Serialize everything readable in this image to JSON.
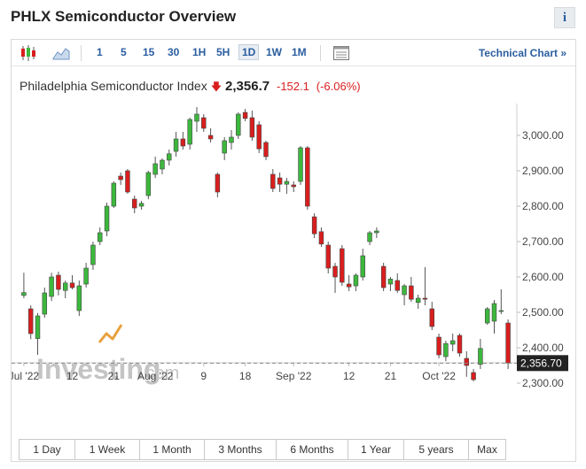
{
  "header": {
    "title": "PHLX Semiconductor Overview",
    "info_label": "i"
  },
  "toolbar": {
    "timeframes": [
      "1",
      "5",
      "15",
      "30",
      "1H",
      "5H",
      "1D",
      "1W",
      "1M"
    ],
    "active_timeframe": "1D",
    "technical_chart_label": "Technical Chart »"
  },
  "quote": {
    "name": "Philadelphia Semiconductor Index",
    "direction_arrow": "🡇",
    "last": "2,356.7",
    "change": "-152.1",
    "change_pct": "(-6.06%)"
  },
  "watermark": {
    "brand": "Investing",
    "domain": ".com"
  },
  "ranges": [
    "1 Day",
    "1 Week",
    "1 Month",
    "3 Months",
    "6 Months",
    "1 Year",
    "5 years",
    "Max"
  ],
  "colors": {
    "up": "#3cb83c",
    "down": "#d91e1e",
    "accent": "#2a5d9f",
    "price_tag_bg": "#222222"
  },
  "chart_data": {
    "type": "candlestick",
    "title": "",
    "y_ticks": [
      3000,
      2900,
      2800,
      2700,
      2600,
      2500,
      2400,
      2300
    ],
    "y_tick_labels": [
      "3,000.00",
      "2,900.00",
      "2,800.00",
      "2,700.00",
      "2,600.00",
      "2,500.00",
      "2,400.00",
      "2,300.00"
    ],
    "ylim": [
      2265,
      3090
    ],
    "x_tick_labels": [
      "Jul '22",
      "12",
      "21",
      "Aug '22",
      "9",
      "18",
      "Sep '22",
      "12",
      "21",
      "Oct '22"
    ],
    "x_tick_index": [
      0,
      7,
      13,
      19,
      26,
      32,
      39,
      47,
      53,
      60
    ],
    "last_price": 2356.7,
    "last_price_label": "2,356.70",
    "grid": false,
    "candles": [
      {
        "o": 2548,
        "h": 2612,
        "l": 2540,
        "c": 2556
      },
      {
        "o": 2510,
        "h": 2520,
        "l": 2424,
        "c": 2440
      },
      {
        "o": 2426,
        "h": 2498,
        "l": 2380,
        "c": 2490
      },
      {
        "o": 2495,
        "h": 2570,
        "l": 2485,
        "c": 2555
      },
      {
        "o": 2545,
        "h": 2612,
        "l": 2532,
        "c": 2600
      },
      {
        "o": 2605,
        "h": 2615,
        "l": 2548,
        "c": 2565
      },
      {
        "o": 2562,
        "h": 2590,
        "l": 2540,
        "c": 2583
      },
      {
        "o": 2583,
        "h": 2605,
        "l": 2565,
        "c": 2570
      },
      {
        "o": 2505,
        "h": 2590,
        "l": 2490,
        "c": 2575
      },
      {
        "o": 2580,
        "h": 2640,
        "l": 2570,
        "c": 2625
      },
      {
        "o": 2635,
        "h": 2700,
        "l": 2620,
        "c": 2690
      },
      {
        "o": 2700,
        "h": 2740,
        "l": 2690,
        "c": 2725
      },
      {
        "o": 2730,
        "h": 2810,
        "l": 2715,
        "c": 2800
      },
      {
        "o": 2800,
        "h": 2870,
        "l": 2795,
        "c": 2865
      },
      {
        "o": 2885,
        "h": 2895,
        "l": 2860,
        "c": 2875
      },
      {
        "o": 2900,
        "h": 2905,
        "l": 2835,
        "c": 2840
      },
      {
        "o": 2820,
        "h": 2830,
        "l": 2780,
        "c": 2795
      },
      {
        "o": 2800,
        "h": 2815,
        "l": 2790,
        "c": 2808
      },
      {
        "o": 2830,
        "h": 2900,
        "l": 2820,
        "c": 2895
      },
      {
        "o": 2890,
        "h": 2940,
        "l": 2880,
        "c": 2920
      },
      {
        "o": 2905,
        "h": 2935,
        "l": 2890,
        "c": 2930
      },
      {
        "o": 2930,
        "h": 2960,
        "l": 2915,
        "c": 2948
      },
      {
        "o": 2955,
        "h": 3010,
        "l": 2940,
        "c": 2990
      },
      {
        "o": 2990,
        "h": 3010,
        "l": 2960,
        "c": 2970
      },
      {
        "o": 2975,
        "h": 3050,
        "l": 2960,
        "c": 3045
      },
      {
        "o": 3040,
        "h": 3080,
        "l": 3010,
        "c": 3060
      },
      {
        "o": 3050,
        "h": 3060,
        "l": 3010,
        "c": 3020
      },
      {
        "o": 3000,
        "h": 3020,
        "l": 2980,
        "c": 2990
      },
      {
        "o": 2890,
        "h": 2895,
        "l": 2825,
        "c": 2840
      },
      {
        "o": 2950,
        "h": 2995,
        "l": 2930,
        "c": 2985
      },
      {
        "o": 2980,
        "h": 3015,
        "l": 2960,
        "c": 2995
      },
      {
        "o": 3000,
        "h": 3065,
        "l": 2990,
        "c": 3060
      },
      {
        "o": 3065,
        "h": 3075,
        "l": 3040,
        "c": 3048
      },
      {
        "o": 3050,
        "h": 3070,
        "l": 2985,
        "c": 2995
      },
      {
        "o": 3030,
        "h": 3040,
        "l": 2950,
        "c": 2962
      },
      {
        "o": 2980,
        "h": 2985,
        "l": 2930,
        "c": 2940
      },
      {
        "o": 2890,
        "h": 2905,
        "l": 2840,
        "c": 2850
      },
      {
        "o": 2880,
        "h": 2895,
        "l": 2840,
        "c": 2862
      },
      {
        "o": 2862,
        "h": 2880,
        "l": 2835,
        "c": 2870
      },
      {
        "o": 2860,
        "h": 2870,
        "l": 2840,
        "c": 2855
      },
      {
        "o": 2870,
        "h": 2970,
        "l": 2860,
        "c": 2965
      },
      {
        "o": 2965,
        "h": 2970,
        "l": 2790,
        "c": 2800
      },
      {
        "o": 2770,
        "h": 2780,
        "l": 2710,
        "c": 2722
      },
      {
        "o": 2728,
        "h": 2740,
        "l": 2685,
        "c": 2693
      },
      {
        "o": 2690,
        "h": 2700,
        "l": 2610,
        "c": 2625
      },
      {
        "o": 2630,
        "h": 2640,
        "l": 2555,
        "c": 2600
      },
      {
        "o": 2680,
        "h": 2690,
        "l": 2575,
        "c": 2585
      },
      {
        "o": 2580,
        "h": 2605,
        "l": 2560,
        "c": 2572
      },
      {
        "o": 2575,
        "h": 2610,
        "l": 2560,
        "c": 2605
      },
      {
        "o": 2600,
        "h": 2680,
        "l": 2590,
        "c": 2660
      },
      {
        "o": 2700,
        "h": 2730,
        "l": 2690,
        "c": 2725
      },
      {
        "o": 2725,
        "h": 2740,
        "l": 2710,
        "c": 2730
      },
      {
        "o": 2630,
        "h": 2640,
        "l": 2560,
        "c": 2570
      },
      {
        "o": 2580,
        "h": 2600,
        "l": 2560,
        "c": 2594
      },
      {
        "o": 2590,
        "h": 2610,
        "l": 2555,
        "c": 2562
      },
      {
        "o": 2550,
        "h": 2580,
        "l": 2520,
        "c": 2575
      },
      {
        "o": 2575,
        "h": 2600,
        "l": 2530,
        "c": 2537
      },
      {
        "o": 2528,
        "h": 2550,
        "l": 2510,
        "c": 2540
      },
      {
        "o": 2540,
        "h": 2628,
        "l": 2520,
        "c": 2537
      },
      {
        "o": 2510,
        "h": 2530,
        "l": 2450,
        "c": 2460
      },
      {
        "o": 2430,
        "h": 2440,
        "l": 2370,
        "c": 2380
      },
      {
        "o": 2375,
        "h": 2420,
        "l": 2362,
        "c": 2412
      },
      {
        "o": 2410,
        "h": 2440,
        "l": 2390,
        "c": 2420
      },
      {
        "o": 2435,
        "h": 2440,
        "l": 2375,
        "c": 2385
      },
      {
        "o": 2370,
        "h": 2390,
        "l": 2318,
        "c": 2350
      },
      {
        "o": 2330,
        "h": 2340,
        "l": 2305,
        "c": 2310
      },
      {
        "o": 2353,
        "h": 2425,
        "l": 2340,
        "c": 2398
      },
      {
        "o": 2470,
        "h": 2515,
        "l": 2465,
        "c": 2510
      },
      {
        "o": 2475,
        "h": 2535,
        "l": 2440,
        "c": 2525
      },
      {
        "o": 2505,
        "h": 2565,
        "l": 2495,
        "c": 2505
      },
      {
        "o": 2470,
        "h": 2480,
        "l": 2340,
        "c": 2357
      }
    ]
  }
}
